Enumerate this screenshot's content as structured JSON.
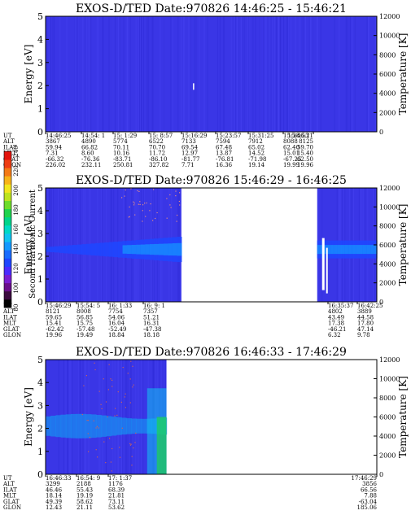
{
  "chart_data": [
    {
      "type": "heatmap",
      "title": "EXOS-D/TED   Date:970826  14:46:25 - 15:46:21",
      "ylabel": "Energy [eV]",
      "y2label": "Temperature [K]",
      "ylim": [
        0,
        5
      ],
      "y2lim": [
        0,
        12000
      ],
      "y_ticks": [
        "0",
        "1",
        "2",
        "3",
        "4",
        "5"
      ],
      "y2_ticks": [
        "0",
        "2000",
        "4000",
        "6000",
        "8000",
        "10000",
        "12000"
      ],
      "data_extent": [
        0,
        1
      ],
      "background_level": 100,
      "eph": {
        "row_labels": [
          "UT",
          "ALT",
          "ILAT",
          "MLT",
          "GLAT",
          "GLON"
        ],
        "columns": [
          [
            "14:46:25",
            "3867",
            "59.94",
            "7.31",
            "-66.32",
            "226.02"
          ],
          [
            "14:54: 1",
            "4890",
            "66.82",
            "8.60",
            "-76.36",
            "232.11"
          ],
          [
            "15: 1:29",
            "5774",
            "70.11",
            "10.16",
            "-83.71",
            "250.81"
          ],
          [
            "15: 8:57",
            "6522",
            "70.70",
            "11.72",
            "-86.10",
            "327.82"
          ],
          [
            "15:16:29",
            "7133",
            "69.54",
            "12.97",
            "-81.77",
            "7.71"
          ],
          [
            "15:23:57",
            "7594",
            "67.48",
            "13.87",
            "-76.81",
            "16.36"
          ],
          [
            "15:31:25",
            "7912",
            "65.02",
            "14.52",
            "-71.98",
            "19.14"
          ],
          [
            "15:38:53",
            "8088",
            "62.40",
            "15.01",
            "-67.25",
            "19.99"
          ],
          [
            "15:46:21",
            "8125",
            "59.70",
            "15.40",
            "-62.50",
            "19.96"
          ]
        ]
      }
    },
    {
      "type": "heatmap",
      "title": "EXOS-D/TED   Date:970826  15:46:29 - 16:46:25",
      "ylabel": "Energy [eV]",
      "y2label": "Temperature [K]",
      "ylim": [
        0,
        5
      ],
      "y2lim": [
        0,
        12000
      ],
      "y_ticks": [
        "0",
        "1",
        "2",
        "3",
        "4",
        "5"
      ],
      "y2_ticks": [
        "0",
        "2000",
        "4000",
        "6000",
        "8000",
        "10000",
        "12000"
      ],
      "segments": [
        [
          0,
          0.41
        ],
        [
          0.82,
          1
        ]
      ],
      "background_level": 100,
      "band": {
        "center_eV": 2.3,
        "level": 130
      },
      "eph": {
        "row_labels": [
          "UT",
          "ALT",
          "ILAT",
          "MLT",
          "GLAT",
          "GLON"
        ],
        "columns": [
          [
            "15:46:29",
            "8121",
            "59.65",
            "15.41",
            "-62.42",
            "19.96"
          ],
          [
            "15:54: 5",
            "8008",
            "56.85",
            "15.75",
            "-57.48",
            "19.49"
          ],
          [
            "16: 1:33",
            "7754",
            "54.06",
            "16.04",
            "-52.49",
            "18.84"
          ],
          [
            "16: 9: 1",
            "7357",
            "51.21",
            "16.31",
            "-47.38",
            "18.18"
          ],
          [
            "16:35:37",
            "4802",
            "43.49",
            "17.38",
            "-46.21",
            "6.32"
          ],
          [
            "16:42:25",
            "3889",
            "44.58",
            "17.80",
            "47.14",
            "9.78"
          ]
        ]
      }
    },
    {
      "type": "heatmap",
      "title": "EXOS-D/TED   Date:970826  16:46:33 - 17:46:29",
      "ylabel": "Energy [eV]",
      "y2label": "Temperature [K]",
      "ylim": [
        0,
        5
      ],
      "y2lim": [
        0,
        12000
      ],
      "y_ticks": [
        "0",
        "1",
        "2",
        "3",
        "4",
        "5"
      ],
      "y2_ticks": [
        "0",
        "2000",
        "4000",
        "6000",
        "8000",
        "10000",
        "12000"
      ],
      "data_extent": [
        0,
        0.365
      ],
      "background_level": 100,
      "eph": {
        "row_labels": [
          "UT",
          "ALT",
          "ILAT",
          "MLT",
          "GLAT",
          "GLON"
        ],
        "columns": [
          [
            "16:46:33",
            "3299",
            "46.46",
            "18.14",
            "49.39",
            "12.43"
          ],
          [
            "16:54: 9",
            "2188",
            "55.43",
            "19.19",
            "58.62",
            "21.11"
          ],
          [
            "17: 1:37",
            "1176",
            "68.39",
            "21.81",
            "73.11",
            "53.62"
          ],
          [
            "17:46:29",
            "3856",
            "66.56",
            "7.88",
            "-63.04",
            "185.06"
          ]
        ]
      }
    }
  ],
  "colorbar": {
    "label": "Second Harmonic Current",
    "ticks": [
      "80",
      "100",
      "120",
      "140",
      "160",
      "180",
      "200",
      "220",
      "240"
    ],
    "colors": [
      "#000000",
      "#3b0a3e",
      "#6a0f8a",
      "#7a1ed0",
      "#4b2cff",
      "#1f46ff",
      "#1a6cff",
      "#1599ff",
      "#11c3f0",
      "#00d9c6",
      "#00d48a",
      "#1fd34d",
      "#6edc2a",
      "#bde31f",
      "#f2e61d",
      "#f7b319",
      "#f47a17",
      "#ee3e14",
      "#e3140d"
    ]
  }
}
